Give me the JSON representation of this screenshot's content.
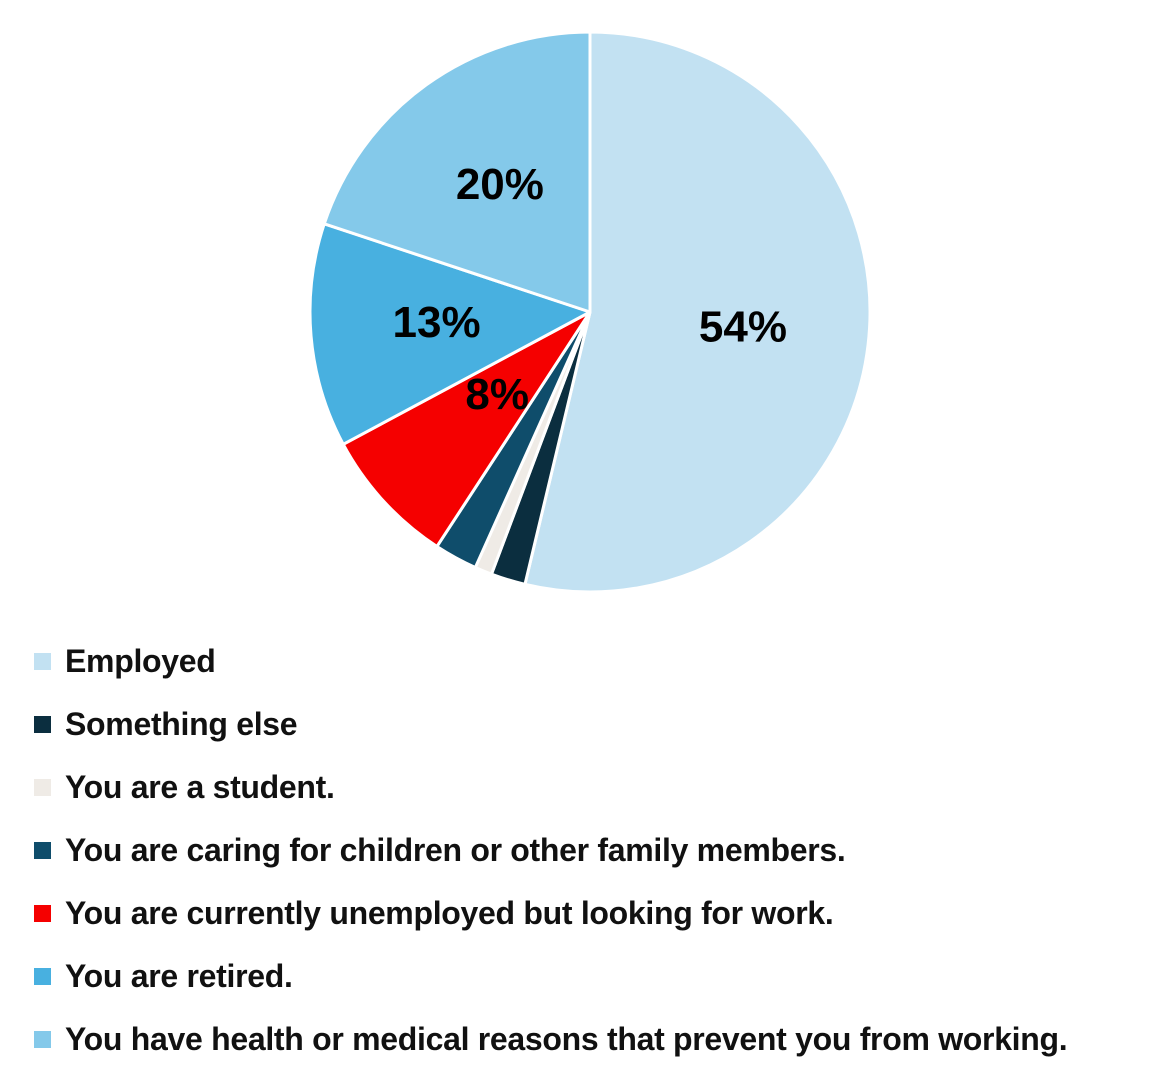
{
  "chart_data": {
    "type": "pie",
    "slices": [
      {
        "label": "Employed",
        "value": 54,
        "display": "54%",
        "color": "#c2e1f2"
      },
      {
        "label": "Something else",
        "value": 2,
        "display": "",
        "color": "#0b2e3f"
      },
      {
        "label": "You are a student.",
        "value": 1,
        "display": "",
        "color": "#efebe6"
      },
      {
        "label": "You are caring for children or other family members.",
        "value": 2.5,
        "display": "",
        "color": "#0f4d6b"
      },
      {
        "label": "You are currently unemployed but looking for work.",
        "value": 8,
        "display": "8%",
        "color": "#f50000"
      },
      {
        "label": "You are retired.",
        "value": 13,
        "display": "13%",
        "color": "#48b0e0"
      },
      {
        "label": "You have health or medical reasons that prevent you from working.",
        "value": 20,
        "display": "20%",
        "color": "#84c9ea"
      }
    ],
    "legend_position": "bottom-left"
  }
}
